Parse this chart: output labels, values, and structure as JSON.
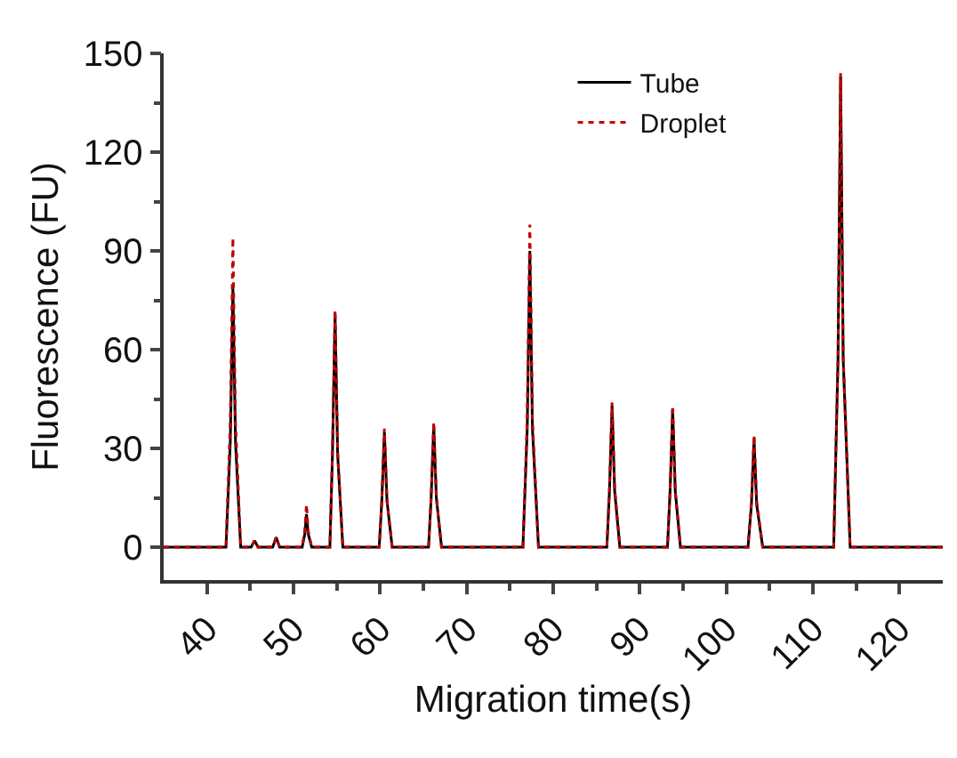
{
  "chart_data": {
    "type": "line",
    "xlabel": "Migration time(s)",
    "ylabel": "Fluorescence (FU)",
    "x": [
      35,
      42.2,
      42.7,
      43,
      43.3,
      43.9,
      45.1,
      45.5,
      45.9,
      47.6,
      48,
      48.4,
      51,
      51.3,
      51.5,
      51.7,
      52.1,
      54.2,
      54.5,
      54.8,
      55.1,
      55.7,
      59.9,
      60.2,
      60.5,
      60.8,
      61.4,
      65.6,
      65.9,
      66.2,
      66.5,
      67.1,
      76.5,
      77,
      77.3,
      77.6,
      78.3,
      86.2,
      86.5,
      86.8,
      87.1,
      87.7,
      93.2,
      93.5,
      93.8,
      94.1,
      94.7,
      102.5,
      102.9,
      103.2,
      103.5,
      104.2,
      112.4,
      112.9,
      113.2,
      113.5,
      114.3,
      125
    ],
    "series": [
      {
        "name": "Tube",
        "color": "#000000",
        "line_style": "solid",
        "values": [
          0,
          0,
          32,
          79,
          32,
          0,
          0,
          2,
          0,
          0,
          3,
          0,
          0,
          4,
          10,
          4,
          0,
          0,
          28,
          71,
          28,
          0,
          0,
          14,
          35,
          14,
          0,
          0,
          15,
          37,
          15,
          0,
          0,
          36,
          90,
          36,
          0,
          0,
          17,
          43,
          17,
          0,
          0,
          17,
          42,
          17,
          0,
          0,
          13,
          33,
          13,
          0,
          0,
          57,
          143,
          57,
          0,
          0
        ]
      },
      {
        "name": "Droplet",
        "color": "#c00000",
        "line_style": "dotted",
        "values": [
          0,
          0,
          38,
          94,
          38,
          0,
          0,
          2,
          0,
          0,
          3,
          0,
          0,
          5,
          13,
          5,
          0,
          0,
          29,
          72,
          29,
          0,
          0,
          14,
          36,
          14,
          0,
          0,
          15,
          38,
          15,
          0,
          0,
          39,
          98,
          39,
          0,
          0,
          18,
          44,
          18,
          0,
          0,
          17,
          43,
          17,
          0,
          0,
          14,
          34,
          14,
          0,
          0,
          58,
          144,
          58,
          0,
          0
        ]
      }
    ],
    "xlim": [
      35,
      125
    ],
    "xticks": [
      40,
      50,
      60,
      70,
      80,
      90,
      100,
      110,
      120
    ],
    "ylim": [
      -10,
      150
    ],
    "yticks": [
      0,
      30,
      60,
      90,
      120,
      150
    ],
    "grid": false,
    "legend": "top right",
    "marker": "none"
  }
}
